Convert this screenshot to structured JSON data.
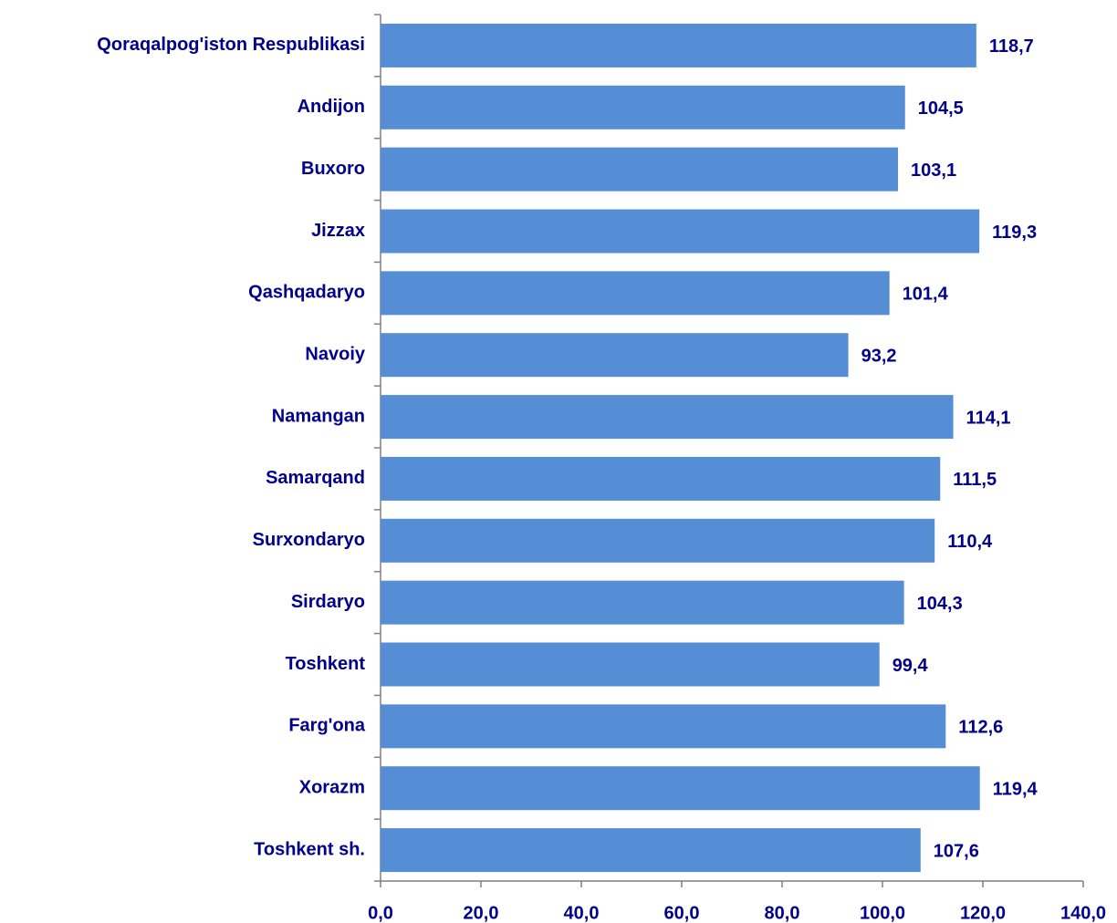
{
  "chart_data": {
    "type": "barh",
    "categories": [
      "Qoraqalpog'iston Respublikasi",
      "Andijon",
      "Buxoro",
      "Jizzax",
      "Qashqadaryo",
      "Navoiy",
      "Namangan",
      "Samarqand",
      "Surxondaryo",
      "Sirdaryo",
      "Toshkent",
      "Farg'ona",
      "Xorazm",
      "Toshkent sh."
    ],
    "values": [
      118.7,
      104.5,
      103.1,
      119.3,
      101.4,
      93.2,
      114.1,
      111.5,
      110.4,
      104.3,
      99.4,
      112.6,
      119.4,
      107.6
    ],
    "value_labels": [
      "118,7",
      "104,5",
      "103,1",
      "119,3",
      "101,4",
      "93,2",
      "114,1",
      "111,5",
      "110,4",
      "104,3",
      "99,4",
      "112,6",
      "119,4",
      "107,6"
    ],
    "color": "#558ed5",
    "xlim": [
      0,
      140
    ],
    "xticks": [
      {
        "value": 0,
        "label": "0,0"
      },
      {
        "value": 20,
        "label": "20,0"
      },
      {
        "value": 40,
        "label": "40,0"
      },
      {
        "value": 60,
        "label": "60,0"
      },
      {
        "value": 80,
        "label": "80,0"
      },
      {
        "value": 100,
        "label": "100,0"
      },
      {
        "value": 120,
        "label": "120,0"
      },
      {
        "value": 140,
        "label": "140,0"
      }
    ],
    "grid": false
  }
}
